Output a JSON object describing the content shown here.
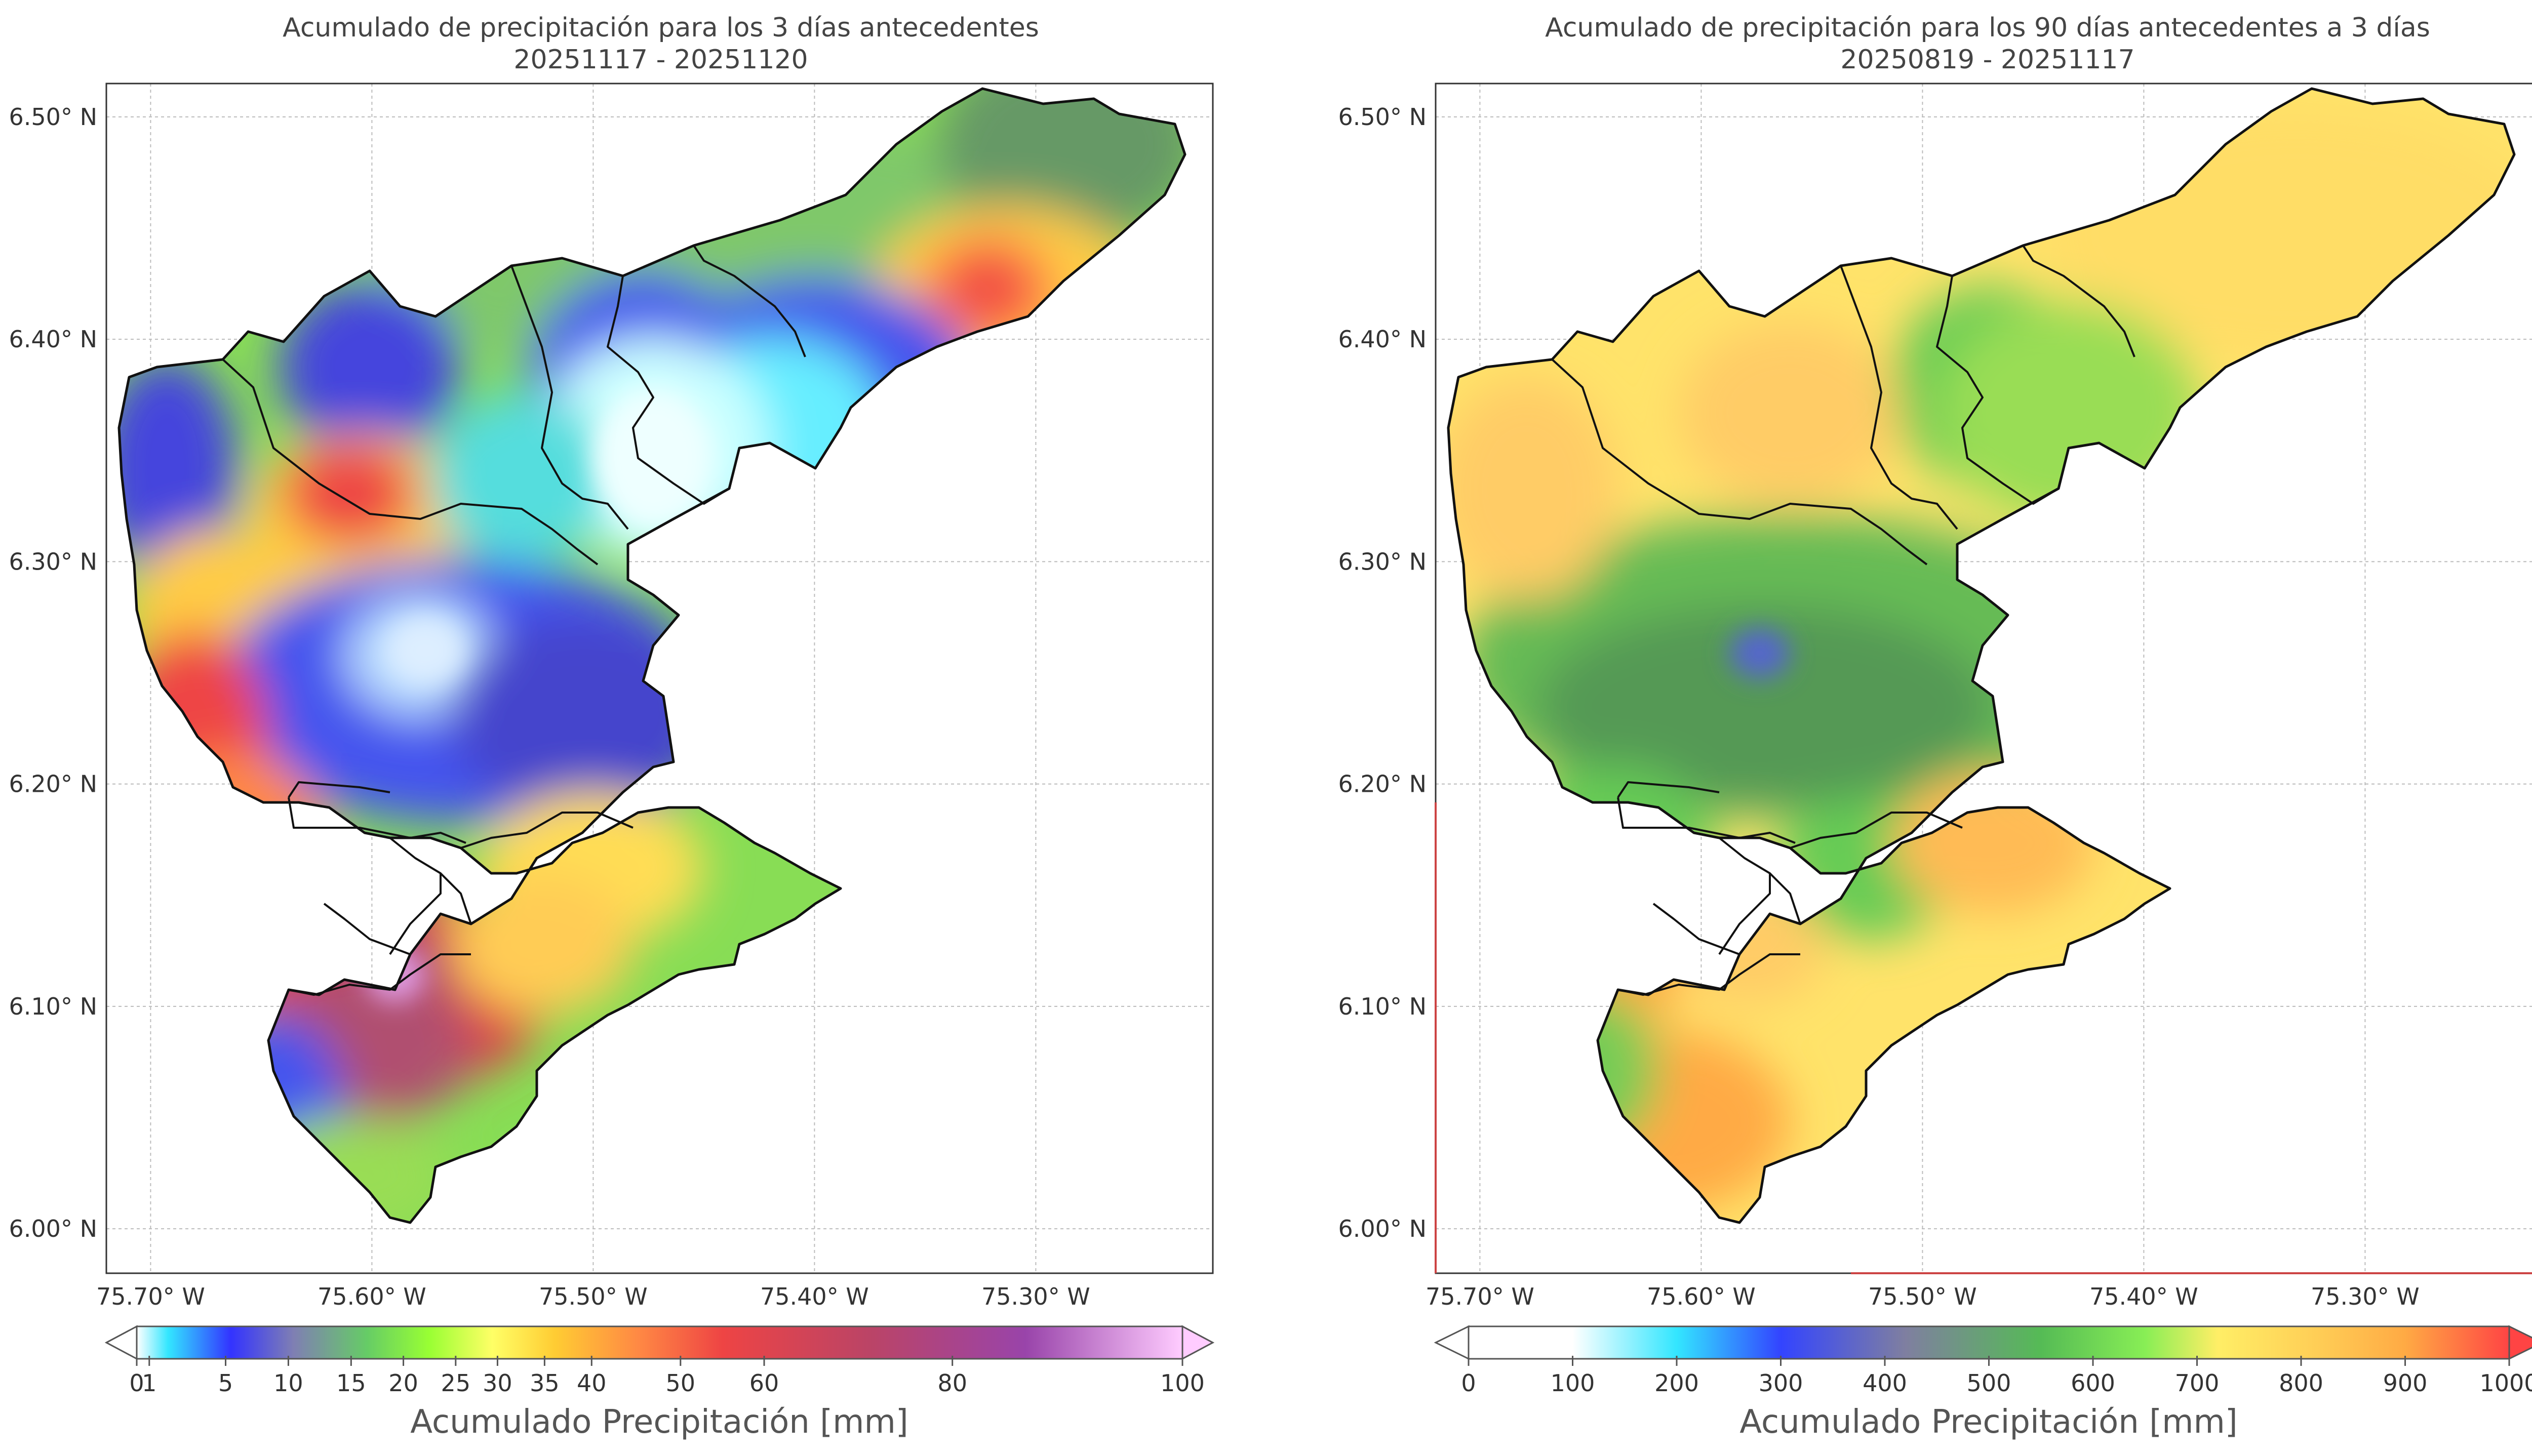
{
  "panels": [
    {
      "title_line1": "Acumulado de precipitación para los 3 días antecedentes",
      "title_line2": "20251117 - 20251120",
      "colorbar": {
        "title": "Acumulado Precipitación [mm]",
        "tick_labels": [
          "0",
          "1",
          "5",
          "10",
          "15",
          "20",
          "25",
          "30",
          "35",
          "40",
          "50",
          "60",
          "80",
          "100"
        ],
        "tick_values": [
          0,
          1,
          5,
          10,
          15,
          20,
          25,
          30,
          35,
          40,
          50,
          60,
          80,
          100
        ],
        "colors": [
          "#ffffff",
          "#33e6ff",
          "#3333ff",
          "#7f7fb3",
          "#66cc66",
          "#99ff33",
          "#ffff66",
          "#ffcc33",
          "#ff8844",
          "#ee4444",
          "#bb4466",
          "#9944aa",
          "#ffccff"
        ]
      }
    },
    {
      "title_line1": "Acumulado de precipitación para los 90 días antecedentes a 3 días",
      "title_line2": "20250819 - 20251117",
      "colorbar": {
        "title": "Acumulado Precipitación [mm]",
        "tick_labels": [
          "0",
          "100",
          "200",
          "300",
          "400",
          "500",
          "600",
          "700",
          "800",
          "900",
          "1000"
        ],
        "tick_values": [
          0,
          100,
          200,
          300,
          400,
          500,
          600,
          700,
          800,
          900,
          1000
        ],
        "colors": [
          "#ffffff",
          "#33e6ff",
          "#3344ff",
          "#7f7fa0",
          "#55bb55",
          "#88ee55",
          "#ffee66",
          "#ffcc55",
          "#ffaa44",
          "#ff4444"
        ]
      }
    }
  ],
  "axes": {
    "lon_labels": [
      "75.70° W",
      "75.60° W",
      "75.50° W",
      "75.40° W",
      "75.30° W"
    ],
    "lat_labels": [
      "6.50° N",
      "6.40° N",
      "6.30° N",
      "6.20° N",
      "6.10° N",
      "6.00° N"
    ],
    "lon_values": [
      -75.7,
      -75.6,
      -75.5,
      -75.4,
      -75.3
    ],
    "lat_values": [
      6.5,
      6.4,
      6.3,
      6.2,
      6.1,
      6.0
    ],
    "lon_range": [
      -75.72,
      -75.22
    ],
    "lat_range": [
      5.98,
      6.515
    ]
  }
}
